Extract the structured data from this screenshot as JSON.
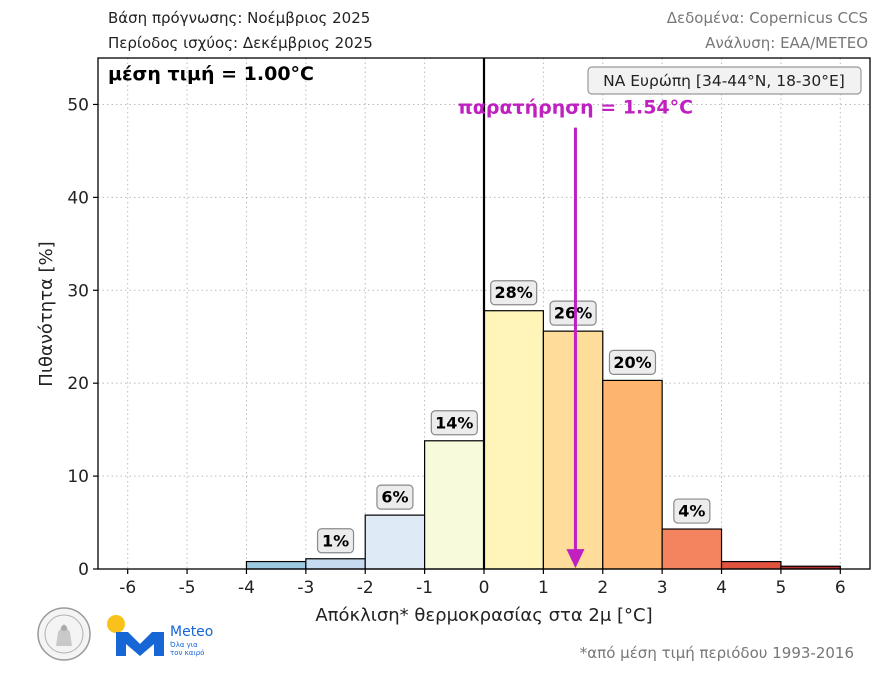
{
  "header": {
    "left_line1": "Βάση πρόγνωσης: Νοέμβριος 2025",
    "left_line2": "Περίοδος ισχύος: Δεκέμβριος 2025",
    "right_line1": "Δεδομένα: Copernicus CCS",
    "right_line2": "Ανάλυση: ΕΑΑ/METEO"
  },
  "logo": {
    "brand": "Meteo",
    "tagline1": "Όλα για",
    "tagline2": "τον καιρό"
  },
  "footnote": "*από μέση τιμή περιόδου 1993-2016",
  "chart_data": {
    "type": "bar",
    "xlabel": "Απόκλιση* θερμοκρασίας στα 2μ [°C]",
    "ylabel": "Πιθανότητα [%]",
    "xlim": [
      -6.5,
      6.5
    ],
    "ylim": [
      0,
      55
    ],
    "xticks": [
      -6,
      -5,
      -4,
      -3,
      -2,
      -1,
      0,
      1,
      2,
      3,
      4,
      5,
      6
    ],
    "yticks": [
      0,
      10,
      20,
      30,
      40,
      50
    ],
    "grid": true,
    "bins": [
      {
        "from": -4,
        "to": -3,
        "value": 0.8,
        "color": "#9ecae1",
        "label": ""
      },
      {
        "from": -3,
        "to": -2,
        "value": 1.1,
        "color": "#c6dbef",
        "label": "1%"
      },
      {
        "from": -2,
        "to": -1,
        "value": 5.8,
        "color": "#deebf7",
        "label": "6%"
      },
      {
        "from": -1,
        "to": 0,
        "value": 13.8,
        "color": "#f7fbdc",
        "label": "14%"
      },
      {
        "from": 0,
        "to": 1,
        "value": 27.8,
        "color": "#fff5b8",
        "label": "28%"
      },
      {
        "from": 1,
        "to": 2,
        "value": 25.6,
        "color": "#fedc9a",
        "label": "26%"
      },
      {
        "from": 2,
        "to": 3,
        "value": 20.3,
        "color": "#fdb46e",
        "label": "20%"
      },
      {
        "from": 3,
        "to": 4,
        "value": 4.3,
        "color": "#f4845f",
        "label": "4%"
      },
      {
        "from": 4,
        "to": 5,
        "value": 0.8,
        "color": "#e0533e",
        "label": ""
      },
      {
        "from": 5,
        "to": 6,
        "value": 0.3,
        "color": "#b22e2e",
        "label": ""
      }
    ],
    "mean_text": "μέση τιμή = 1.00°C",
    "region_text": "ΝΑ Ευρώπη [34-44°N, 18-30°E]",
    "observation": {
      "value": 1.54,
      "label": "παρατήρηση = 1.54°C",
      "color": "#c020c0"
    },
    "zero_line": 0
  }
}
